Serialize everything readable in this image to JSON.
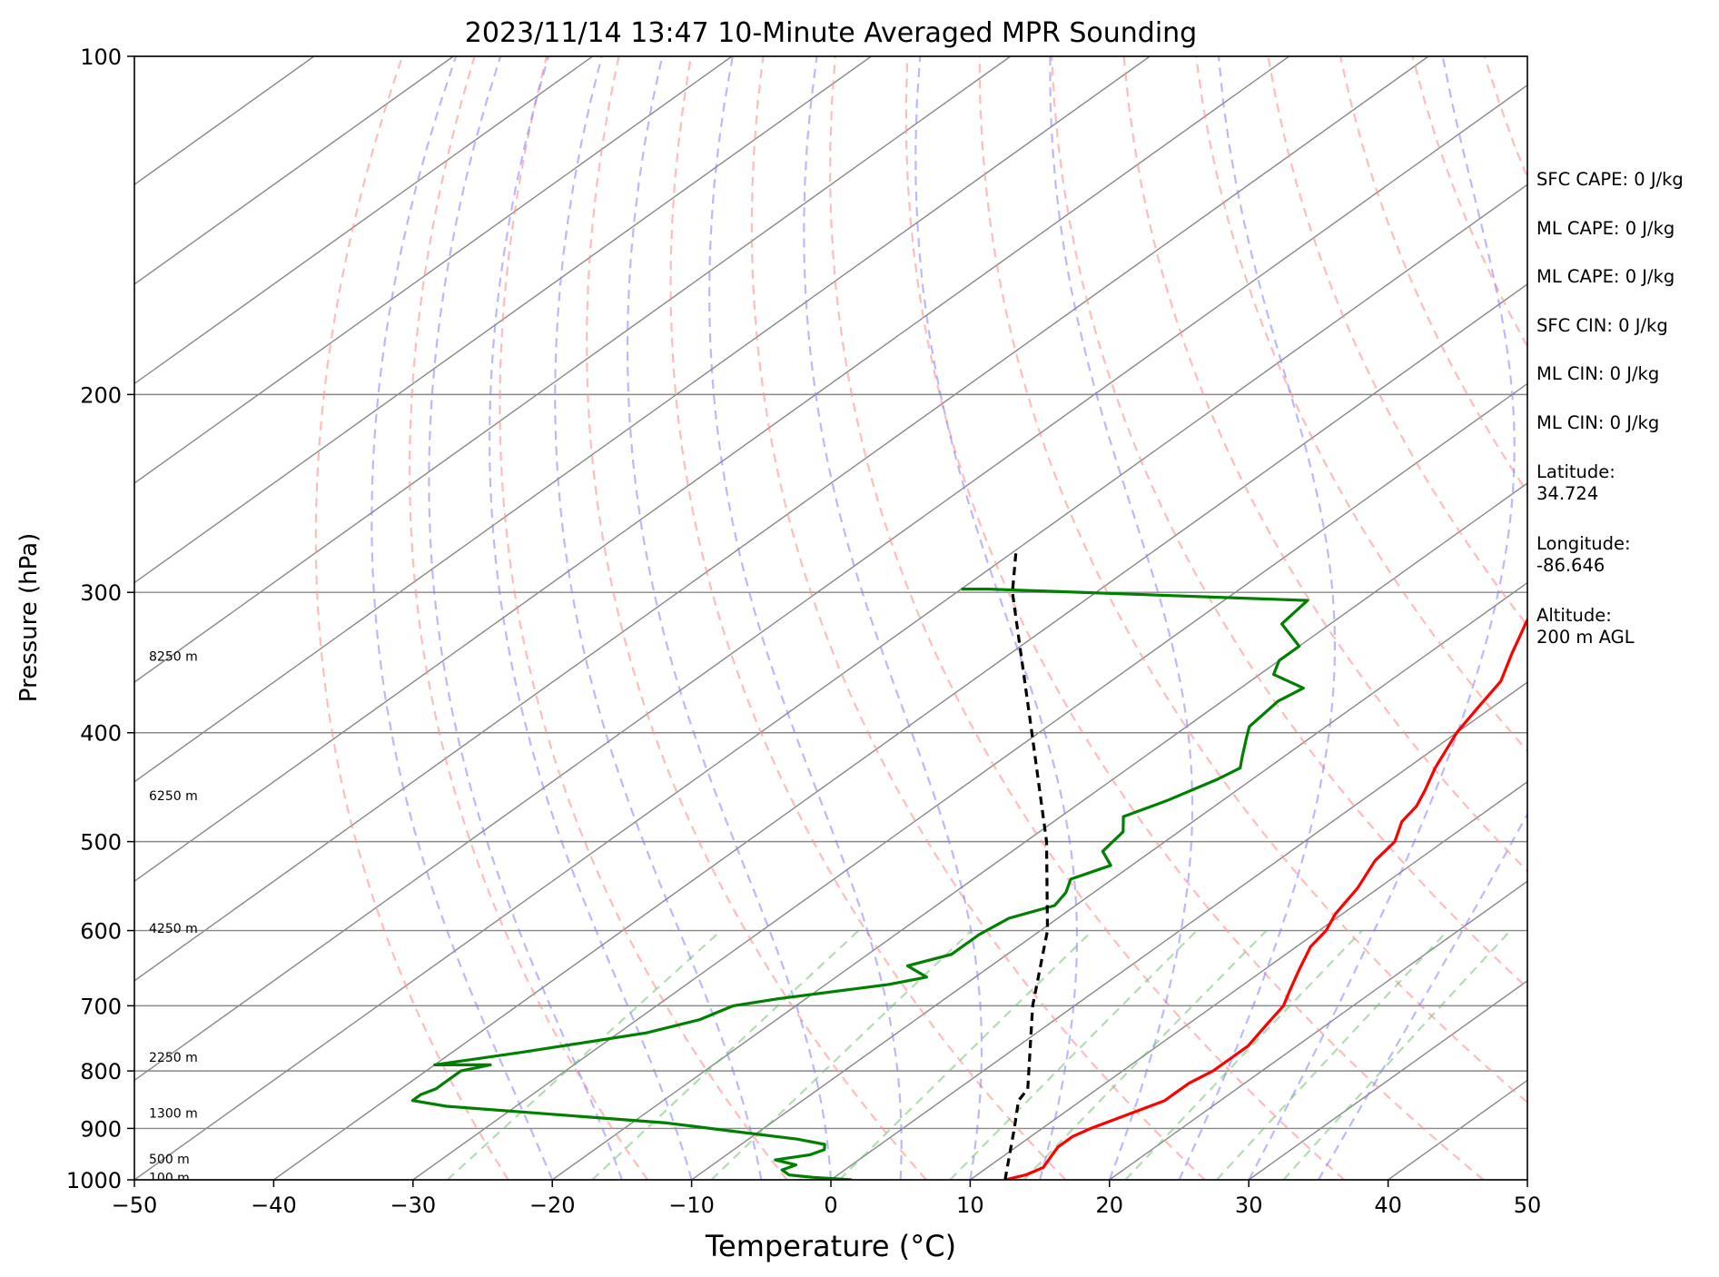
{
  "chart_data": {
    "type": "line",
    "title": "2023/11/14 13:47 10-Minute Averaged MPR Sounding",
    "xlabel": "Temperature (°C)",
    "ylabel": "Pressure (hPa)",
    "xlim": [
      -50,
      50
    ],
    "ylim": [
      1000,
      100
    ],
    "y_scale": "log",
    "skew": true,
    "grid": true,
    "x_ticks": [
      "−50",
      "−40",
      "−30",
      "−20",
      "−10",
      "0",
      "10",
      "20",
      "30",
      "40",
      "50"
    ],
    "y_ticks": [
      "100",
      "200",
      "300",
      "400",
      "500",
      "600",
      "700",
      "800",
      "900",
      "1000"
    ],
    "y_tick_values": [
      100,
      200,
      300,
      400,
      500,
      600,
      700,
      800,
      900,
      1000
    ],
    "series": [
      {
        "color": "#ff0000",
        "dash": "solid",
        "points": [
          [
            1000,
            12.5
          ],
          [
            990,
            13.5
          ],
          [
            975,
            14.0
          ],
          [
            955,
            13.5
          ],
          [
            935,
            13.0
          ],
          [
            915,
            13.0
          ],
          [
            900,
            13.5
          ],
          [
            880,
            14.5
          ],
          [
            860,
            15.5
          ],
          [
            850,
            16.0
          ],
          [
            835,
            16.0
          ],
          [
            820,
            16.0
          ],
          [
            800,
            16.5
          ],
          [
            780,
            16.5
          ],
          [
            760,
            16.5
          ],
          [
            740,
            16.0
          ],
          [
            720,
            15.5
          ],
          [
            700,
            15.0
          ],
          [
            680,
            14.0
          ],
          [
            650,
            12.5
          ],
          [
            620,
            11.0
          ],
          [
            600,
            10.5
          ],
          [
            580,
            9.5
          ],
          [
            550,
            8.5
          ],
          [
            520,
            7.0
          ],
          [
            500,
            6.5
          ],
          [
            480,
            5.0
          ],
          [
            465,
            4.5
          ],
          [
            450,
            3.5
          ],
          [
            430,
            2.0
          ],
          [
            400,
            0.0
          ],
          [
            380,
            -1.0
          ],
          [
            360,
            -2.0
          ],
          [
            340,
            -4.0
          ],
          [
            320,
            -6.0
          ],
          [
            300,
            -8.0
          ],
          [
            285,
            -10.0
          ],
          [
            275,
            -11.0
          ]
        ]
      },
      {
        "color": "#008000",
        "dash": "solid",
        "points": [
          [
            1000,
            1.5
          ],
          [
            995,
            -1.5
          ],
          [
            990,
            -3.5
          ],
          [
            980,
            -4.5
          ],
          [
            970,
            -4.0
          ],
          [
            960,
            -6.0
          ],
          [
            950,
            -4.0
          ],
          [
            940,
            -3.5
          ],
          [
            930,
            -4.0
          ],
          [
            920,
            -6.5
          ],
          [
            905,
            -12.0
          ],
          [
            890,
            -17.5
          ],
          [
            860,
            -35.0
          ],
          [
            850,
            -38.0
          ],
          [
            840,
            -38.0
          ],
          [
            830,
            -37.5
          ],
          [
            815,
            -37.5
          ],
          [
            800,
            -37.5
          ],
          [
            790,
            -36.0
          ],
          [
            790,
            -40.0
          ],
          [
            770,
            -35.0
          ],
          [
            740,
            -28.0
          ],
          [
            720,
            -25.5
          ],
          [
            700,
            -24.5
          ],
          [
            690,
            -22.0
          ],
          [
            670,
            -15.5
          ],
          [
            660,
            -13.5
          ],
          [
            645,
            -16.0
          ],
          [
            630,
            -14.0
          ],
          [
            605,
            -14.0
          ],
          [
            585,
            -13.5
          ],
          [
            570,
            -11.5
          ],
          [
            555,
            -12.0
          ],
          [
            540,
            -13.0
          ],
          [
            525,
            -11.5
          ],
          [
            510,
            -13.5
          ],
          [
            490,
            -14.0
          ],
          [
            475,
            -15.5
          ],
          [
            460,
            -14.0
          ],
          [
            440,
            -12.5
          ],
          [
            430,
            -12.0
          ],
          [
            420,
            -13.0
          ],
          [
            405,
            -14.5
          ],
          [
            395,
            -15.5
          ],
          [
            375,
            -16.0
          ],
          [
            365,
            -15.5
          ],
          [
            355,
            -19.0
          ],
          [
            345,
            -20.0
          ],
          [
            335,
            -20.0
          ],
          [
            320,
            -23.5
          ],
          [
            305,
            -24.0
          ],
          [
            298,
            -48.0
          ],
          [
            298,
            -50.0
          ]
        ]
      },
      {
        "color": "#000000",
        "dash": "dashed",
        "points": [
          [
            1000,
            12.5
          ],
          [
            900,
            8.0
          ],
          [
            850,
            5.5
          ],
          [
            830,
            5.0
          ],
          [
            700,
            -3.0
          ],
          [
            600,
            -9.5
          ],
          [
            500,
            -18.5
          ],
          [
            400,
            -30.5
          ],
          [
            300,
            -46.0
          ],
          [
            275,
            -50.0
          ]
        ]
      }
    ],
    "height_labels": [
      {
        "text": "8250 m",
        "p": 342
      },
      {
        "text": "6250 m",
        "p": 455
      },
      {
        "text": "4250 m",
        "p": 597
      },
      {
        "text": "2250 m",
        "p": 778
      },
      {
        "text": "1300 m",
        "p": 872
      },
      {
        "text": "500 m",
        "p": 958
      },
      {
        "text": "100 m",
        "p": 995
      }
    ],
    "reference_lines": {
      "isotherm_step": 10,
      "dry_adiabat_theta": [
        250,
        260,
        270,
        280,
        290,
        300,
        310,
        320,
        330,
        340,
        350,
        360,
        370,
        380,
        390,
        400,
        410,
        420,
        430,
        440,
        450
      ],
      "moist_adiabat_start_temp": [
        -20,
        -15,
        -10,
        -5,
        0,
        5,
        10,
        15,
        20,
        25,
        30,
        35
      ],
      "mixing_ratio_gkg": [
        0.4,
        1,
        2,
        4,
        7,
        10,
        16,
        24,
        32
      ],
      "colors": {
        "isotherm": "#888888",
        "isobar": "#888888",
        "dry_adiabat": "#ff9090",
        "moist_adiabat": "#8080ff",
        "mixing_ratio": "#66bb66"
      }
    }
  },
  "side_panel": [
    "SFC CAPE: 0 J/kg",
    "ML CAPE: 0 J/kg",
    "ML CAPE: 0 J/kg",
    "SFC CIN: 0 J/kg",
    "ML CIN: 0 J/kg",
    "ML CIN: 0 J/kg",
    "Latitude:\n34.724",
    "Longitude:\n-86.646",
    "Altitude:\n200 m AGL"
  ]
}
